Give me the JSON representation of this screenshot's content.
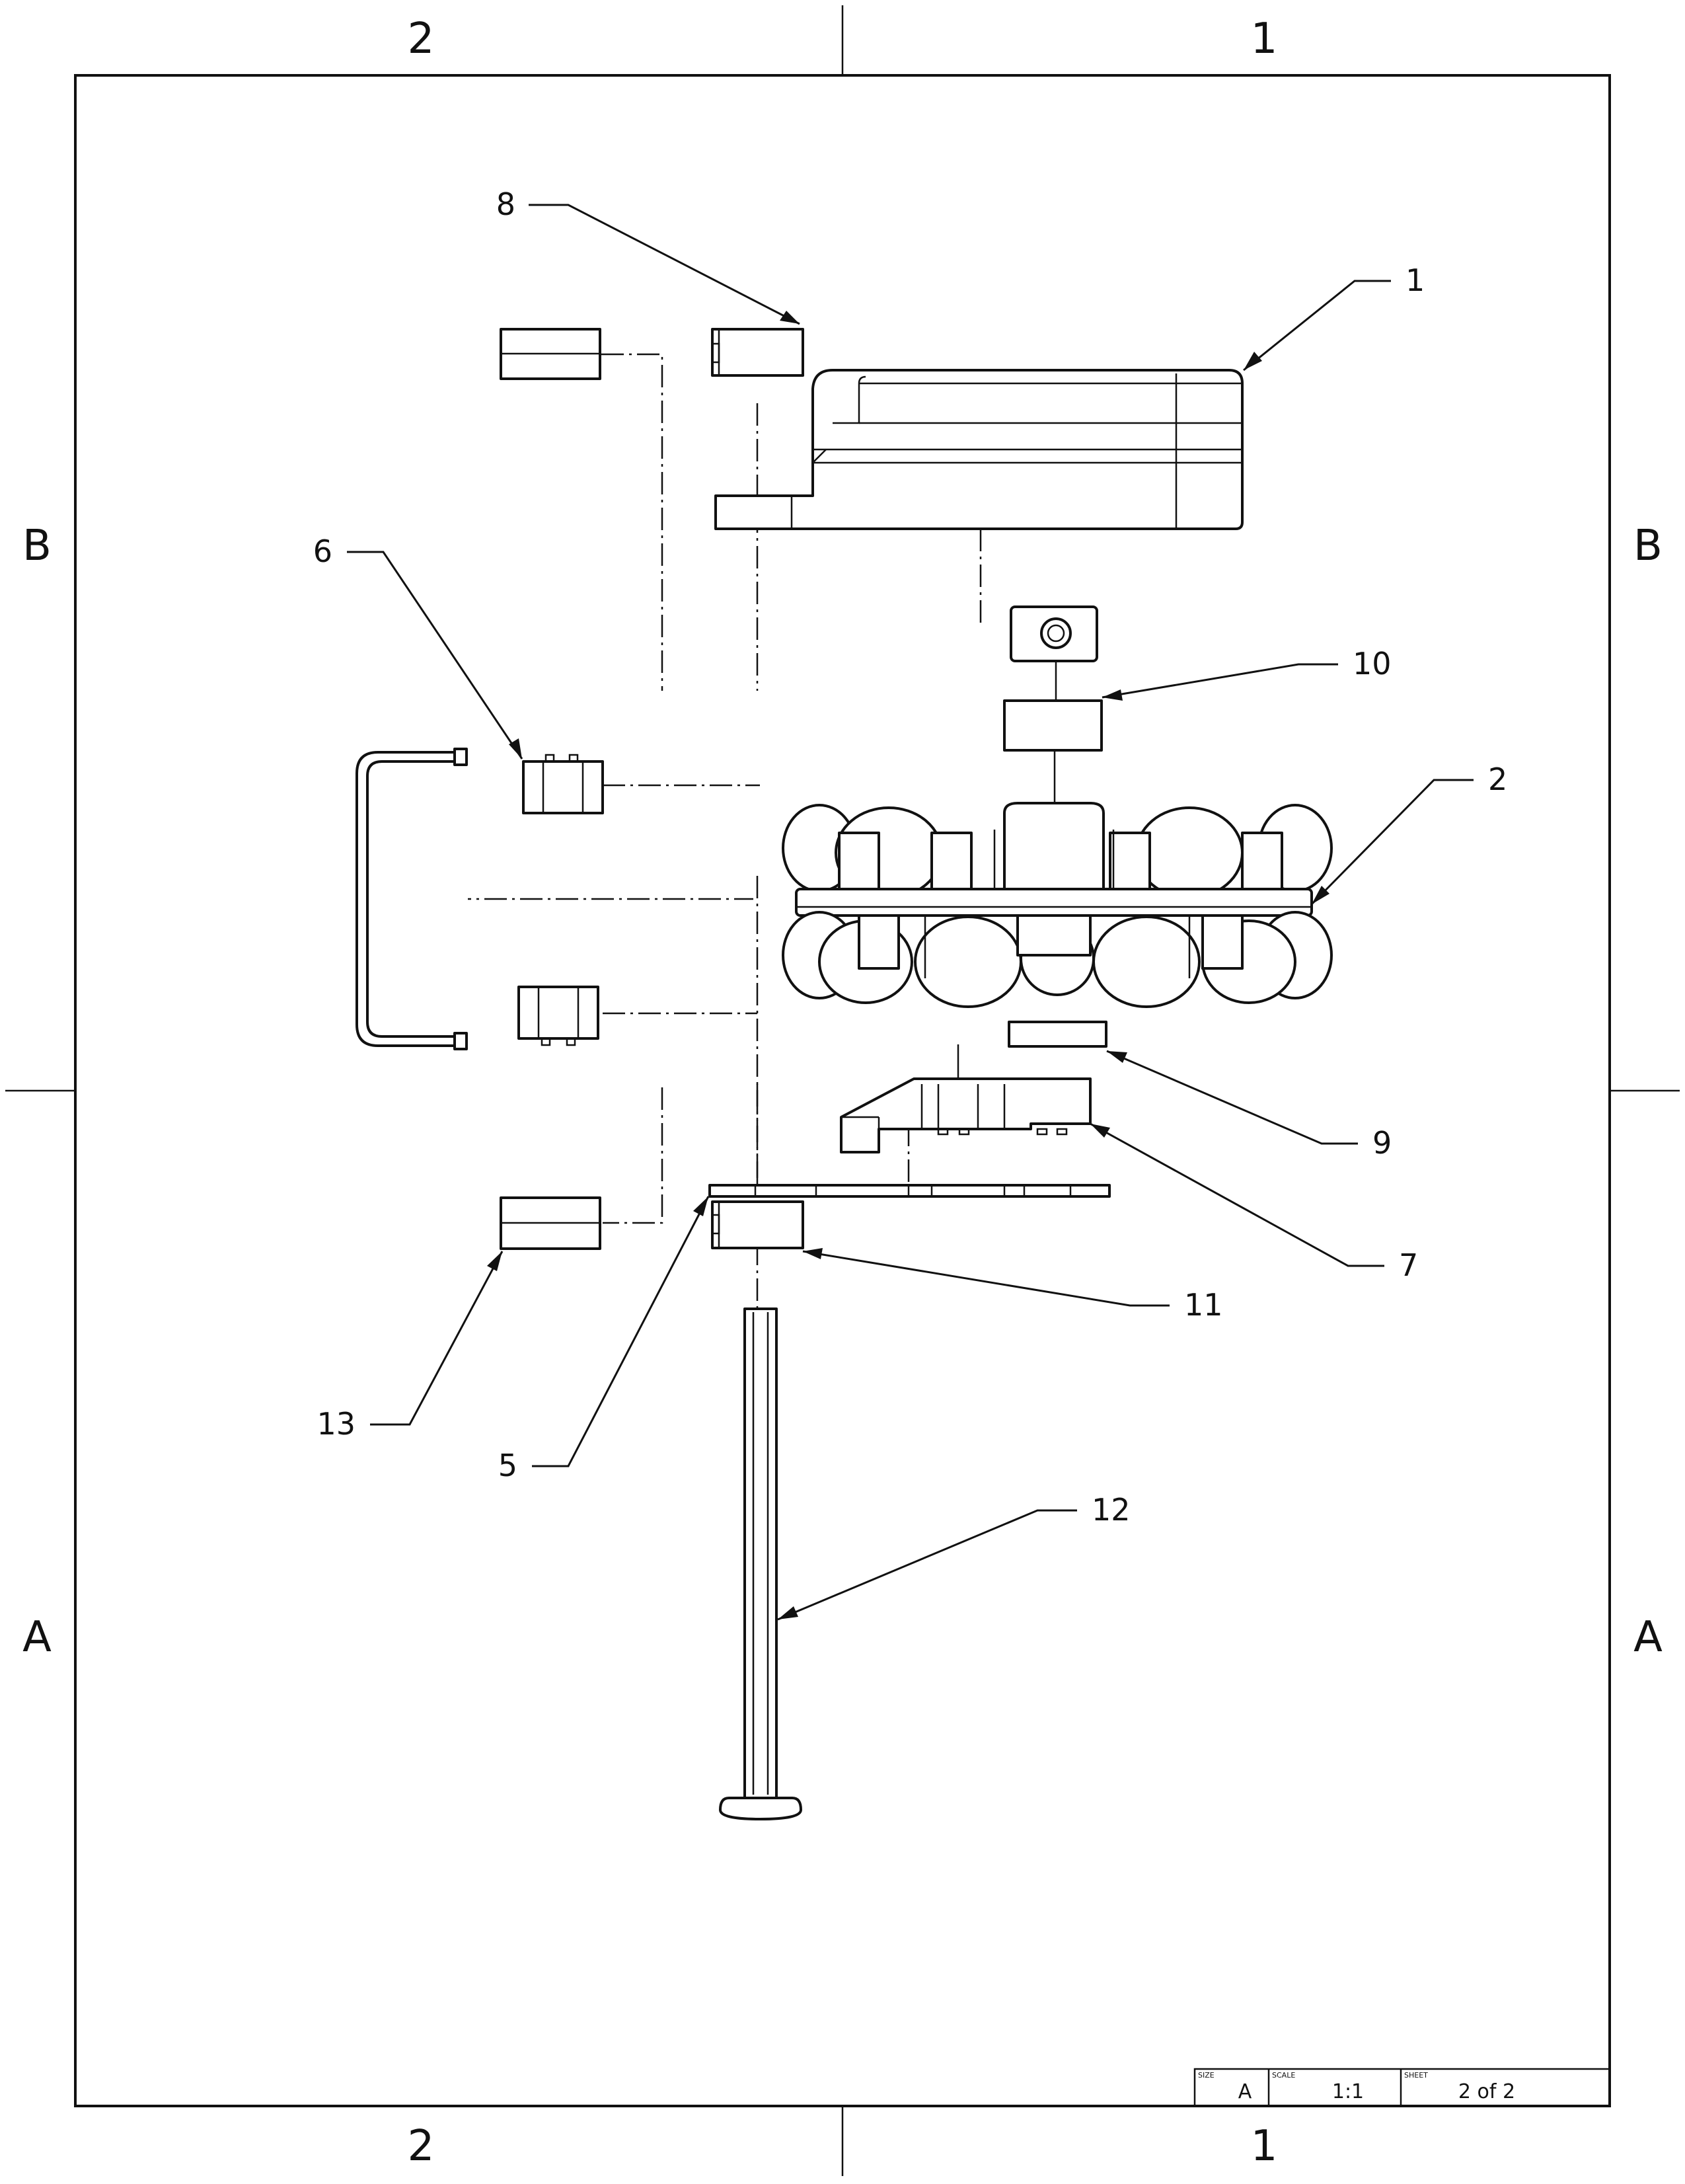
{
  "zones": {
    "top": [
      "2",
      "1"
    ],
    "bottom": [
      "2",
      "1"
    ],
    "left": [
      "B",
      "A"
    ],
    "right": [
      "B",
      "A"
    ]
  },
  "balloons": [
    {
      "id": "b1",
      "label": "1"
    },
    {
      "id": "b2",
      "label": "2"
    },
    {
      "id": "b5",
      "label": "5"
    },
    {
      "id": "b6",
      "label": "6"
    },
    {
      "id": "b7",
      "label": "7"
    },
    {
      "id": "b8",
      "label": "8"
    },
    {
      "id": "b9",
      "label": "9"
    },
    {
      "id": "b10",
      "label": "10"
    },
    {
      "id": "b11",
      "label": "11"
    },
    {
      "id": "b12",
      "label": "12"
    },
    {
      "id": "b13",
      "label": "13"
    }
  ],
  "title_block": {
    "size_label": "SIZE",
    "size_value": "A",
    "scale_label": "SCALE",
    "scale_value": "1:1",
    "sheet_label": "SHEET",
    "sheet_value": "2 of 2"
  }
}
